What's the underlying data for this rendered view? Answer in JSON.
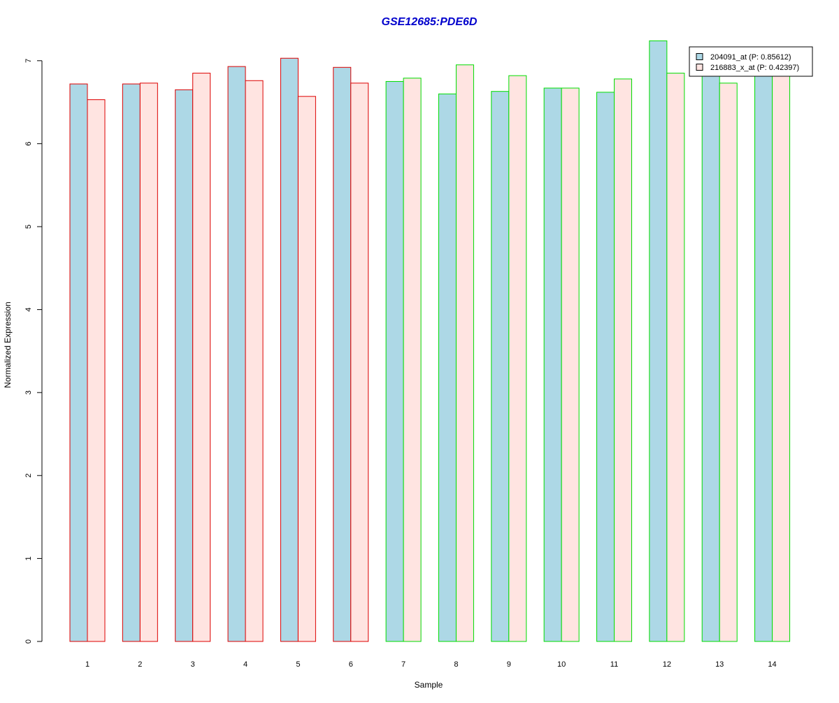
{
  "chart_data": {
    "type": "bar",
    "title": "GSE12685:PDE6D",
    "xlabel": "Sample",
    "ylabel": "Normalized Expression",
    "ylim": [
      0,
      7
    ],
    "yticks": [
      0,
      1,
      2,
      3,
      4,
      5,
      6,
      7
    ],
    "categories": [
      "1",
      "2",
      "3",
      "4",
      "5",
      "6",
      "7",
      "8",
      "9",
      "10",
      "11",
      "12",
      "13",
      "14"
    ],
    "series": [
      {
        "name": "204091_at (P: 0.85612)",
        "fill": "#add8e6",
        "values": [
          6.72,
          6.72,
          6.65,
          6.93,
          7.03,
          6.92,
          6.75,
          6.6,
          6.63,
          6.67,
          6.62,
          7.24,
          6.84,
          6.84
        ]
      },
      {
        "name": "216883_x_at (P: 0.42397)",
        "fill": "#ffe4e1",
        "values": [
          6.53,
          6.73,
          6.85,
          6.76,
          6.57,
          6.73,
          6.79,
          6.95,
          6.82,
          6.67,
          6.78,
          6.85,
          6.73,
          6.84
        ]
      }
    ],
    "group_border_colors": [
      "#dd0000",
      "#dd0000",
      "#dd0000",
      "#dd0000",
      "#dd0000",
      "#dd0000",
      "#00dd00",
      "#00dd00",
      "#00dd00",
      "#00dd00",
      "#00dd00",
      "#00dd00",
      "#00dd00",
      "#00dd00"
    ],
    "title_color": "#0000cc",
    "legend_position": "top-right",
    "grid": false
  }
}
